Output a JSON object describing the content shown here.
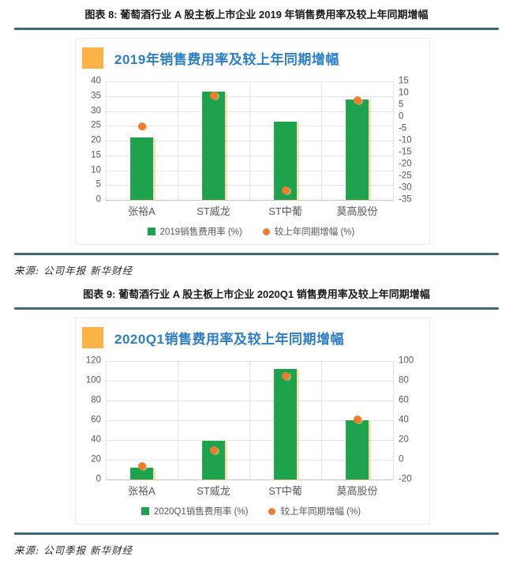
{
  "captions": {
    "figure8": "图表 8: 葡萄酒行业 A 股主板上市企业 2019 年销售费用率及较上年同期增幅",
    "figure9": "图表 9: 葡萄酒行业 A 股主板上市企业 2020Q1 销售费用率及较上年同期增幅"
  },
  "sources": {
    "figure8": "来源: 公司年报 新华财经",
    "figure9": "来源: 公司季报 新华财经"
  },
  "colors": {
    "bar_green": "#1ea24e",
    "dot_orange": "#ed7d31",
    "title_blue": "#2b7ec8",
    "accent_orange": "#fbb246",
    "rule_teal": "#3e6974"
  },
  "chart_data": [
    {
      "type": "bar",
      "title": "2019年销售费用率及较上年同期增幅",
      "categories": [
        "张裕A",
        "ST威龙",
        "ST中葡",
        "莫高股份"
      ],
      "series": [
        {
          "name": "2019销售费用率 (%)",
          "kind": "bar",
          "axis": "left",
          "values": [
            21,
            36.5,
            26.5,
            34
          ]
        },
        {
          "name": "较上年同期增幅 (%)",
          "kind": "scatter",
          "axis": "right",
          "values": [
            -4,
            9,
            -31,
            7
          ]
        }
      ],
      "left_axis": {
        "min": 0,
        "max": 40,
        "step": 5
      },
      "right_axis": {
        "min": -35,
        "max": 15,
        "step": 5
      },
      "grid": true,
      "legend_position": "bottom"
    },
    {
      "type": "bar",
      "title": "2020Q1销售费用率及较上年同期增幅",
      "categories": [
        "张裕A",
        "ST威龙",
        "ST中葡",
        "莫高股份"
      ],
      "series": [
        {
          "name": "2020Q1销售费用率 (%)",
          "kind": "bar",
          "axis": "left",
          "values": [
            12,
            39,
            112,
            60
          ]
        },
        {
          "name": "较上年同期增幅 (%)",
          "kind": "scatter",
          "axis": "right",
          "values": [
            -6,
            10,
            85,
            41
          ]
        }
      ],
      "left_axis": {
        "min": 0,
        "max": 120,
        "step": 20
      },
      "right_axis": {
        "min": -20,
        "max": 100,
        "step": 20
      },
      "grid": true,
      "legend_position": "bottom"
    }
  ]
}
